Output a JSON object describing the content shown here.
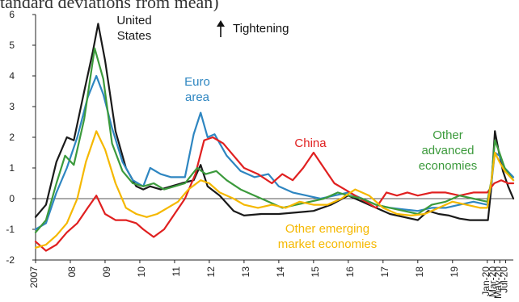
{
  "header": {
    "title_fragment": "tandard deviations from mean)"
  },
  "chart_data": {
    "type": "line",
    "title": "",
    "xlabel": "",
    "ylabel": "",
    "ylim": [
      -2,
      6
    ],
    "yticks": [
      -2,
      -1,
      0,
      1,
      2,
      3,
      4,
      5,
      6
    ],
    "xlim": [
      2007.0,
      2020.75
    ],
    "grid": false,
    "zero_line": true,
    "legend": "none (series labeled directly on chart)",
    "annotation_tightening": "Tightening",
    "xtick_labels": [
      {
        "label": "2007",
        "x": 2007.0
      },
      {
        "label": "08",
        "x": 2008.0
      },
      {
        "label": "09",
        "x": 2009.0
      },
      {
        "label": "10",
        "x": 2010.0
      },
      {
        "label": "11",
        "x": 2011.0
      },
      {
        "label": "12",
        "x": 2012.0
      },
      {
        "label": "13",
        "x": 2013.0
      },
      {
        "label": "14",
        "x": 2014.0
      },
      {
        "label": "15",
        "x": 2015.0
      },
      {
        "label": "16",
        "x": 2016.0
      },
      {
        "label": "17",
        "x": 2017.0
      },
      {
        "label": "18",
        "x": 2018.0
      },
      {
        "label": "19",
        "x": 2019.0
      },
      {
        "label": "Jan-20",
        "x": 2020.0
      },
      {
        "label": "Mar-20",
        "x": 2020.2
      },
      {
        "label": "May-20",
        "x": 2020.36
      },
      {
        "label": "Jul-20",
        "x": 2020.53
      }
    ],
    "series": [
      {
        "name": "United States",
        "color": "#1a1a1a",
        "label_lines": [
          "United",
          "States"
        ],
        "points": [
          [
            2007.0,
            -0.6
          ],
          [
            2007.3,
            -0.2
          ],
          [
            2007.6,
            1.2
          ],
          [
            2007.9,
            2.0
          ],
          [
            2008.1,
            1.9
          ],
          [
            2008.4,
            3.5
          ],
          [
            2008.65,
            4.8
          ],
          [
            2008.8,
            5.7
          ],
          [
            2009.0,
            4.5
          ],
          [
            2009.3,
            2.2
          ],
          [
            2009.6,
            1.0
          ],
          [
            2009.9,
            0.4
          ],
          [
            2010.1,
            0.3
          ],
          [
            2010.3,
            0.4
          ],
          [
            2010.6,
            0.3
          ],
          [
            2010.9,
            0.4
          ],
          [
            2011.2,
            0.5
          ],
          [
            2011.55,
            0.6
          ],
          [
            2011.75,
            1.1
          ],
          [
            2011.95,
            0.4
          ],
          [
            2012.3,
            0.1
          ],
          [
            2012.7,
            -0.4
          ],
          [
            2013.0,
            -0.55
          ],
          [
            2013.5,
            -0.5
          ],
          [
            2014.0,
            -0.5
          ],
          [
            2014.5,
            -0.45
          ],
          [
            2015.0,
            -0.4
          ],
          [
            2015.5,
            -0.2
          ],
          [
            2016.0,
            0.1
          ],
          [
            2016.4,
            -0.1
          ],
          [
            2016.8,
            -0.3
          ],
          [
            2017.2,
            -0.5
          ],
          [
            2017.6,
            -0.6
          ],
          [
            2018.0,
            -0.7
          ],
          [
            2018.3,
            -0.4
          ],
          [
            2018.6,
            -0.5
          ],
          [
            2018.9,
            -0.55
          ],
          [
            2019.2,
            -0.65
          ],
          [
            2019.5,
            -0.7
          ],
          [
            2019.9,
            -0.7
          ],
          [
            2020.02,
            -0.7
          ],
          [
            2020.12,
            0.4
          ],
          [
            2020.22,
            2.2
          ],
          [
            2020.32,
            1.6
          ],
          [
            2020.45,
            0.9
          ],
          [
            2020.6,
            0.4
          ],
          [
            2020.75,
            0.0
          ]
        ]
      },
      {
        "name": "Euro area",
        "color": "#2e86c1",
        "label_lines": [
          "Euro",
          "area"
        ],
        "points": [
          [
            2007.0,
            -1.0
          ],
          [
            2007.3,
            -0.8
          ],
          [
            2007.6,
            0.2
          ],
          [
            2007.9,
            1.0
          ],
          [
            2008.2,
            2.0
          ],
          [
            2008.5,
            3.3
          ],
          [
            2008.75,
            4.0
          ],
          [
            2008.95,
            3.4
          ],
          [
            2009.2,
            2.3
          ],
          [
            2009.5,
            1.2
          ],
          [
            2009.8,
            0.6
          ],
          [
            2010.1,
            0.4
          ],
          [
            2010.3,
            1.0
          ],
          [
            2010.6,
            0.8
          ],
          [
            2010.9,
            0.7
          ],
          [
            2011.3,
            0.7
          ],
          [
            2011.55,
            2.1
          ],
          [
            2011.75,
            2.8
          ],
          [
            2011.95,
            2.0
          ],
          [
            2012.15,
            2.1
          ],
          [
            2012.5,
            1.4
          ],
          [
            2012.9,
            0.9
          ],
          [
            2013.3,
            0.7
          ],
          [
            2013.7,
            0.8
          ],
          [
            2014.0,
            0.4
          ],
          [
            2014.4,
            0.2
          ],
          [
            2014.8,
            0.1
          ],
          [
            2015.2,
            0.0
          ],
          [
            2015.6,
            0.1
          ],
          [
            2016.0,
            0.2
          ],
          [
            2016.4,
            0.0
          ],
          [
            2016.8,
            -0.2
          ],
          [
            2017.2,
            -0.3
          ],
          [
            2017.6,
            -0.35
          ],
          [
            2018.0,
            -0.4
          ],
          [
            2018.4,
            -0.3
          ],
          [
            2018.8,
            -0.3
          ],
          [
            2019.2,
            -0.2
          ],
          [
            2019.6,
            -0.1
          ],
          [
            2020.0,
            -0.2
          ],
          [
            2020.12,
            0.5
          ],
          [
            2020.22,
            1.5
          ],
          [
            2020.35,
            1.4
          ],
          [
            2020.5,
            1.0
          ],
          [
            2020.75,
            0.7
          ]
        ]
      },
      {
        "name": "China",
        "color": "#e02020",
        "label_lines": [
          "China"
        ],
        "points": [
          [
            2007.0,
            -1.4
          ],
          [
            2007.3,
            -1.7
          ],
          [
            2007.6,
            -1.5
          ],
          [
            2007.9,
            -1.1
          ],
          [
            2008.2,
            -0.8
          ],
          [
            2008.5,
            -0.3
          ],
          [
            2008.75,
            0.1
          ],
          [
            2009.0,
            -0.5
          ],
          [
            2009.3,
            -0.7
          ],
          [
            2009.6,
            -0.7
          ],
          [
            2009.9,
            -0.8
          ],
          [
            2010.1,
            -1.0
          ],
          [
            2010.4,
            -1.25
          ],
          [
            2010.7,
            -1.0
          ],
          [
            2011.0,
            -0.5
          ],
          [
            2011.3,
            0.0
          ],
          [
            2011.6,
            0.8
          ],
          [
            2011.85,
            1.9
          ],
          [
            2012.1,
            2.0
          ],
          [
            2012.4,
            1.8
          ],
          [
            2012.7,
            1.4
          ],
          [
            2013.0,
            1.0
          ],
          [
            2013.4,
            0.8
          ],
          [
            2013.8,
            0.5
          ],
          [
            2014.1,
            0.8
          ],
          [
            2014.4,
            0.6
          ],
          [
            2014.7,
            1.0
          ],
          [
            2015.0,
            1.5
          ],
          [
            2015.3,
            1.0
          ],
          [
            2015.6,
            0.5
          ],
          [
            2015.9,
            0.3
          ],
          [
            2016.2,
            0.1
          ],
          [
            2016.5,
            -0.1
          ],
          [
            2016.8,
            -0.3
          ],
          [
            2017.1,
            0.2
          ],
          [
            2017.4,
            0.1
          ],
          [
            2017.7,
            0.2
          ],
          [
            2018.0,
            0.1
          ],
          [
            2018.4,
            0.2
          ],
          [
            2018.8,
            0.2
          ],
          [
            2019.2,
            0.1
          ],
          [
            2019.6,
            0.2
          ],
          [
            2020.0,
            0.2
          ],
          [
            2020.2,
            0.5
          ],
          [
            2020.4,
            0.6
          ],
          [
            2020.6,
            0.5
          ],
          [
            2020.75,
            0.5
          ]
        ]
      },
      {
        "name": "Other advanced economies",
        "color": "#3c9a3c",
        "label_lines": [
          "Other",
          "advanced",
          "economies"
        ],
        "points": [
          [
            2007.0,
            -1.1
          ],
          [
            2007.3,
            -0.7
          ],
          [
            2007.6,
            0.5
          ],
          [
            2007.85,
            1.4
          ],
          [
            2008.1,
            1.1
          ],
          [
            2008.4,
            2.6
          ],
          [
            2008.7,
            4.9
          ],
          [
            2008.95,
            3.9
          ],
          [
            2009.2,
            1.8
          ],
          [
            2009.5,
            0.9
          ],
          [
            2009.8,
            0.5
          ],
          [
            2010.1,
            0.4
          ],
          [
            2010.4,
            0.5
          ],
          [
            2010.7,
            0.3
          ],
          [
            2011.0,
            0.4
          ],
          [
            2011.3,
            0.5
          ],
          [
            2011.65,
            1.0
          ],
          [
            2011.9,
            0.8
          ],
          [
            2012.2,
            0.9
          ],
          [
            2012.5,
            0.6
          ],
          [
            2012.9,
            0.3
          ],
          [
            2013.3,
            0.1
          ],
          [
            2013.7,
            -0.1
          ],
          [
            2014.1,
            -0.3
          ],
          [
            2014.5,
            -0.2
          ],
          [
            2014.9,
            -0.1
          ],
          [
            2015.3,
            0.0
          ],
          [
            2015.7,
            0.2
          ],
          [
            2016.0,
            0.1
          ],
          [
            2016.4,
            0.0
          ],
          [
            2016.8,
            -0.2
          ],
          [
            2017.2,
            -0.3
          ],
          [
            2017.6,
            -0.4
          ],
          [
            2018.0,
            -0.5
          ],
          [
            2018.4,
            -0.2
          ],
          [
            2018.8,
            -0.1
          ],
          [
            2019.2,
            0.1
          ],
          [
            2019.6,
            0.0
          ],
          [
            2020.0,
            -0.1
          ],
          [
            2020.12,
            0.6
          ],
          [
            2020.22,
            1.9
          ],
          [
            2020.35,
            1.5
          ],
          [
            2020.5,
            1.0
          ],
          [
            2020.75,
            0.6
          ]
        ]
      },
      {
        "name": "Other emerging market economies",
        "color": "#f5b800",
        "label_lines": [
          "Other emerging",
          "market economies"
        ],
        "points": [
          [
            2007.0,
            -1.6
          ],
          [
            2007.3,
            -1.5
          ],
          [
            2007.6,
            -1.2
          ],
          [
            2007.9,
            -0.8
          ],
          [
            2008.2,
            0.0
          ],
          [
            2008.45,
            1.2
          ],
          [
            2008.75,
            2.2
          ],
          [
            2009.0,
            1.6
          ],
          [
            2009.3,
            0.5
          ],
          [
            2009.6,
            -0.3
          ],
          [
            2009.9,
            -0.5
          ],
          [
            2010.2,
            -0.6
          ],
          [
            2010.5,
            -0.5
          ],
          [
            2010.8,
            -0.3
          ],
          [
            2011.1,
            -0.1
          ],
          [
            2011.4,
            0.3
          ],
          [
            2011.75,
            0.6
          ],
          [
            2012.0,
            0.5
          ],
          [
            2012.3,
            0.2
          ],
          [
            2012.7,
            0.0
          ],
          [
            2013.0,
            -0.2
          ],
          [
            2013.4,
            -0.3
          ],
          [
            2013.8,
            -0.2
          ],
          [
            2014.2,
            -0.3
          ],
          [
            2014.6,
            -0.1
          ],
          [
            2015.0,
            -0.2
          ],
          [
            2015.4,
            -0.2
          ],
          [
            2015.8,
            0.0
          ],
          [
            2016.2,
            0.3
          ],
          [
            2016.6,
            0.1
          ],
          [
            2017.0,
            -0.3
          ],
          [
            2017.4,
            -0.5
          ],
          [
            2017.8,
            -0.55
          ],
          [
            2018.2,
            -0.5
          ],
          [
            2018.6,
            -0.3
          ],
          [
            2019.0,
            -0.1
          ],
          [
            2019.4,
            -0.2
          ],
          [
            2019.8,
            -0.3
          ],
          [
            2020.0,
            -0.3
          ],
          [
            2020.12,
            0.6
          ],
          [
            2020.22,
            1.5
          ],
          [
            2020.35,
            1.2
          ],
          [
            2020.5,
            0.9
          ],
          [
            2020.75,
            0.6
          ]
        ]
      }
    ]
  }
}
